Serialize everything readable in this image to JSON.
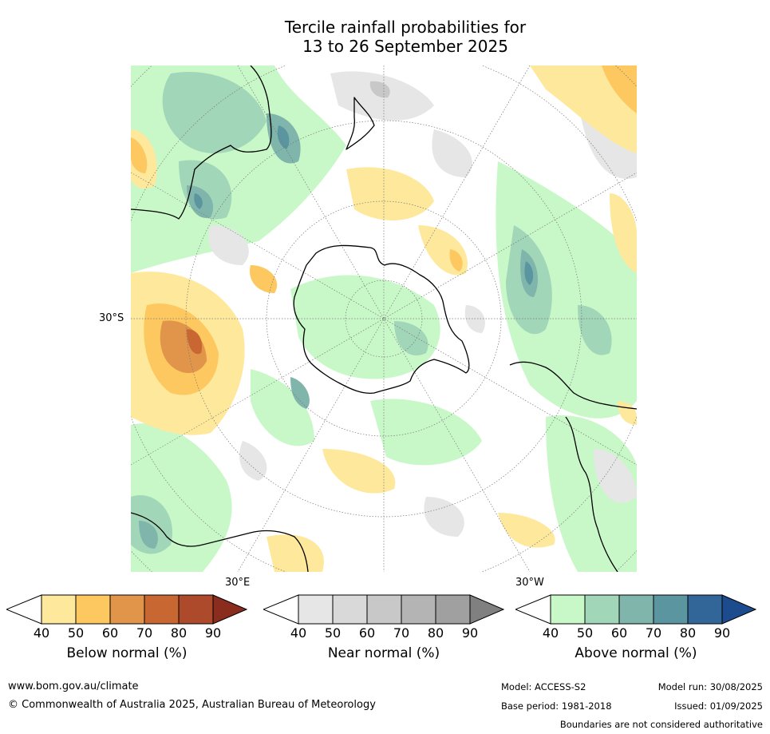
{
  "title": {
    "line1": "Tercile rainfall probabilities for",
    "line2": "13 to 26 September 2025"
  },
  "map_labels": {
    "lat": "30°S",
    "lon_east": "30°E",
    "lon_west": "30°W"
  },
  "colorbars": [
    {
      "caption": "Below normal (%)",
      "ticks": [
        "40",
        "50",
        "60",
        "70",
        "80",
        "90"
      ],
      "colors": [
        "#ffffff",
        "#fee89c",
        "#fdc860",
        "#e0954a",
        "#c96732",
        "#ae4a2c",
        "#8b2d1e"
      ]
    },
    {
      "caption": "Near normal (%)",
      "ticks": [
        "40",
        "50",
        "60",
        "70",
        "80",
        "90"
      ],
      "colors": [
        "#ffffff",
        "#e6e6e6",
        "#d9d9d9",
        "#c8c8c8",
        "#b4b4b4",
        "#a0a0a0",
        "#808080"
      ]
    },
    {
      "caption": "Above normal (%)",
      "ticks": [
        "40",
        "50",
        "60",
        "70",
        "80",
        "90"
      ],
      "colors": [
        "#ffffff",
        "#c8f8c8",
        "#a2d6b8",
        "#80b5ac",
        "#5a95a0",
        "#326698",
        "#1d4c8e"
      ]
    }
  ],
  "footer": {
    "website": "www.bom.gov.au/climate",
    "copyright": "© Commonwealth of Australia 2025, Australian Bureau of Meteorology",
    "model": "Model: ACCESS-S2",
    "base_period": "Base period: 1981-2018",
    "model_run": "Model run: 30/08/2025",
    "issued": "Issued: 01/09/2025",
    "disclaimer": "Boundaries are not considered authoritative"
  }
}
